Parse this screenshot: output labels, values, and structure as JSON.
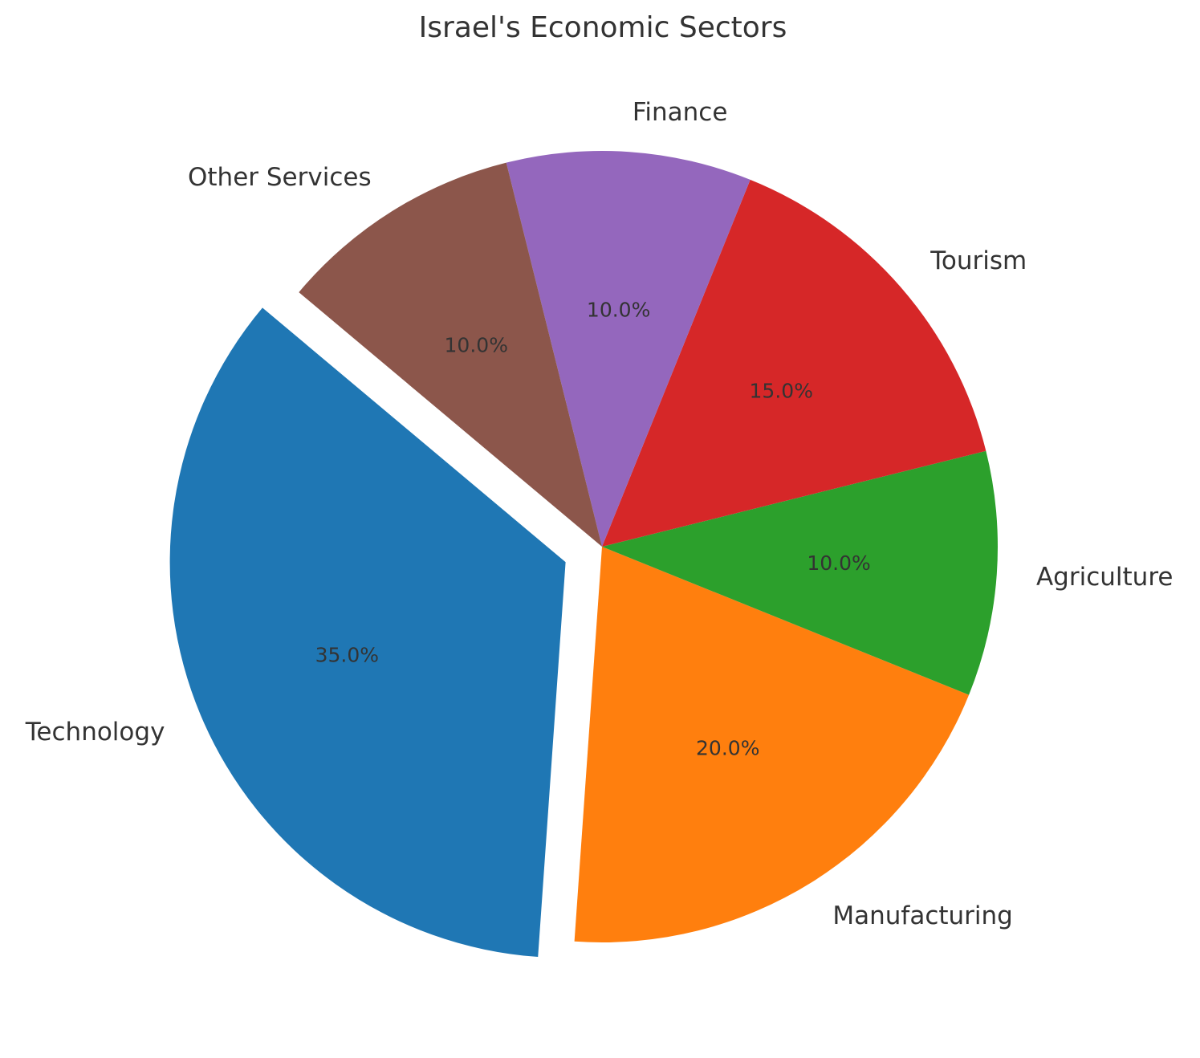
{
  "chart_data": {
    "type": "pie",
    "title": "Israel's Economic Sectors",
    "categories": [
      "Technology",
      "Manufacturing",
      "Agriculture",
      "Tourism",
      "Finance",
      "Other Services"
    ],
    "values": [
      35,
      20,
      10,
      15,
      10,
      10
    ],
    "value_labels": [
      "35.0%",
      "20.0%",
      "10.0%",
      "15.0%",
      "10.0%",
      "10.0%"
    ],
    "colors": [
      "#1f77b4",
      "#ff7f0e",
      "#2ca02c",
      "#d62728",
      "#9467bd",
      "#8c564b"
    ],
    "explode": [
      0.1,
      0,
      0,
      0,
      0,
      0
    ],
    "start_angle": 140,
    "direction": "counterclockwise",
    "autopct": "%1.1f%%",
    "legend": null
  }
}
